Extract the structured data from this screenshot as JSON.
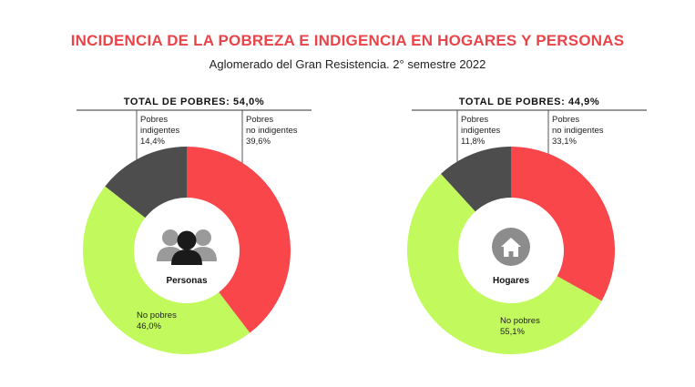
{
  "title": "INCIDENCIA DE LA POBREZA E INDIGENCIA EN HOGARES Y PERSONAS",
  "subtitle": "Aglomerado del Gran Resistencia. 2° semestre 2022",
  "colors": {
    "title": "#e8454a",
    "indigentes": "#4d4d4d",
    "no_indigentes": "#f9464b",
    "no_pobres": "#c2fa5e",
    "icon_front": "#1a1a1a",
    "icon_back": "#9a9a9a"
  },
  "chart_data": [
    {
      "type": "pie",
      "center_label": "Personas",
      "center_icon": "people-icon",
      "total_label": "TOTAL DE POBRES: 54,0%",
      "slices": [
        {
          "key": "indigentes",
          "label_lines": [
            "Pobres",
            "indigentes",
            "14,4%"
          ],
          "value": 14.4
        },
        {
          "key": "no_indigentes",
          "label_lines": [
            "Pobres",
            "no indigentes",
            "39,6%"
          ],
          "value": 39.6
        },
        {
          "key": "no_pobres",
          "label_lines": [
            "No pobres",
            "46,0%"
          ],
          "value": 46.0
        }
      ]
    },
    {
      "type": "pie",
      "center_label": "Hogares",
      "center_icon": "house-icon",
      "total_label": "TOTAL DE POBRES: 44,9%",
      "slices": [
        {
          "key": "indigentes",
          "label_lines": [
            "Pobres",
            "indigentes",
            "11,8%"
          ],
          "value": 11.8
        },
        {
          "key": "no_indigentes",
          "label_lines": [
            "Pobres",
            "no indigentes",
            "33,1%"
          ],
          "value": 33.1
        },
        {
          "key": "no_pobres",
          "label_lines": [
            "No pobres",
            "55,1%"
          ],
          "value": 55.1
        }
      ]
    }
  ]
}
